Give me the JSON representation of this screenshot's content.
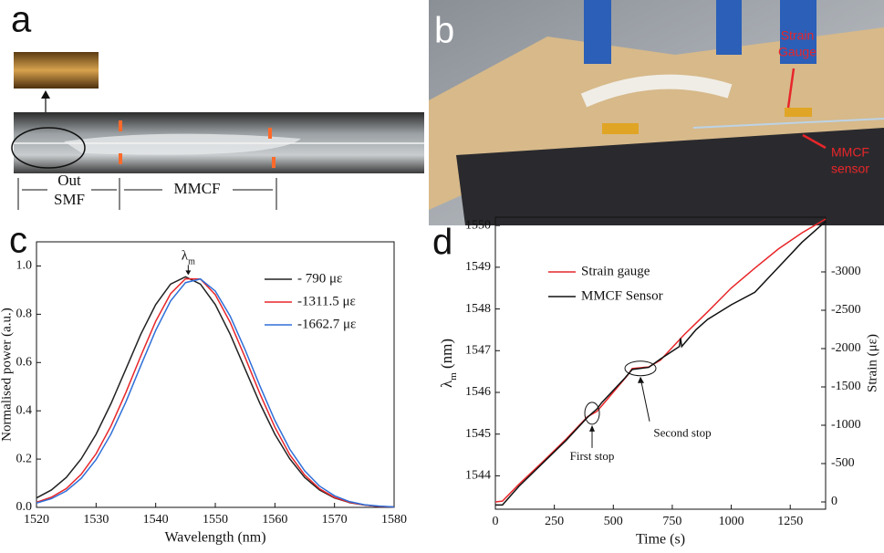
{
  "panel_labels": [
    "a",
    "b",
    "c",
    "d"
  ],
  "photo_a": {
    "labels": [
      "Out",
      "SMF",
      "MMCF"
    ]
  },
  "photo_b": {
    "labels": [
      "Strain",
      "Gauge",
      "MMCF",
      "sensor"
    ]
  },
  "chart_data": [
    {
      "type": "line",
      "ylabel": "Normalised power (a.u.)",
      "xlabel": "Wavelength (nm)",
      "annotation": {
        "symbol": "λ",
        "subscript": "m"
      },
      "xlim": [
        1520,
        1580
      ],
      "xticks": [
        1520,
        1530,
        1540,
        1550,
        1560,
        1570,
        1580
      ],
      "ylim": [
        0,
        1.1
      ],
      "yticks": [
        {
          "value": 0,
          "label": "0.0"
        },
        0.2,
        0.4,
        0.6,
        0.8,
        {
          "value": 1,
          "label": "1.0"
        }
      ],
      "legend": "upper right",
      "x": [
        1520,
        1522.5,
        1525,
        1527.5,
        1530,
        1532.5,
        1535,
        1537.5,
        1540,
        1542.5,
        1545,
        1547.5,
        1550,
        1552.5,
        1555,
        1557.5,
        1560,
        1562.5,
        1565,
        1567.5,
        1570,
        1572.5,
        1575,
        1577.5,
        1580
      ],
      "series": [
        {
          "name": "- 790 με",
          "color": "#222222",
          "values": [
            0.039,
            0.072,
            0.124,
            0.201,
            0.303,
            0.43,
            0.573,
            0.717,
            0.84,
            0.925,
            0.955,
            0.925,
            0.84,
            0.717,
            0.573,
            0.43,
            0.303,
            0.201,
            0.124,
            0.072,
            0.039,
            0.02,
            0.01,
            0.004,
            0.002
          ]
        },
        {
          "name": "-1311.5 με",
          "color": "#e8262a",
          "values": [
            0.021,
            0.042,
            0.078,
            0.137,
            0.222,
            0.337,
            0.476,
            0.627,
            0.771,
            0.885,
            0.947,
            0.946,
            0.881,
            0.766,
            0.621,
            0.47,
            0.332,
            0.218,
            0.134,
            0.077,
            0.041,
            0.021,
            0.01,
            0.004,
            0.002
          ]
        },
        {
          "name": "-1662.7 με",
          "color": "#2e6fd8",
          "values": [
            0.018,
            0.036,
            0.068,
            0.12,
            0.198,
            0.304,
            0.437,
            0.587,
            0.733,
            0.855,
            0.931,
            0.946,
            0.896,
            0.792,
            0.653,
            0.502,
            0.36,
            0.241,
            0.151,
            0.088,
            0.048,
            0.024,
            0.011,
            0.005,
            0.002
          ]
        }
      ]
    },
    {
      "type": "line",
      "xlabel": "Time (s)",
      "ylabel": [
        "λ",
        "m",
        " (nm)"
      ],
      "y2label": "Strain (με)",
      "annotations": [
        "First stop",
        "Second stop"
      ],
      "xlim": [
        0,
        1400
      ],
      "xticks": [
        0,
        250,
        500,
        750,
        1000,
        1250
      ],
      "ylim": [
        1543.2,
        1550.2
      ],
      "yticks": [
        1544,
        1545,
        1546,
        1547,
        1548,
        1549,
        1550
      ],
      "y2lim": [
        95,
        -3714
      ],
      "y2ticks": [
        0,
        -500,
        -1000,
        -1500,
        -2000,
        -2500,
        -3000
      ],
      "legend": "upper left",
      "series": [
        {
          "name": "Strain gauge",
          "color": "#e8262a",
          "axis": "y2",
          "x": [
            0,
            30,
            100,
            200,
            300,
            390,
            430,
            450,
            560,
            580,
            650,
            700,
            800,
            900,
            1000,
            1100,
            1200,
            1300,
            1400
          ],
          "values": [
            0,
            -10,
            -230,
            -520,
            -820,
            -1110,
            -1180,
            -1250,
            -1650,
            -1740,
            -1760,
            -1850,
            -2180,
            -2480,
            -2790,
            -3050,
            -3300,
            -3510,
            -3690
          ]
        },
        {
          "name": "MMCF Sensor",
          "color": "#111111",
          "x": [
            0,
            30,
            100,
            200,
            300,
            390,
            410,
            430,
            450,
            550,
            580,
            650,
            700,
            780,
            785,
            790,
            850,
            900,
            1000,
            1100,
            1200,
            1300,
            1400
          ],
          "values": [
            1543.3,
            1543.3,
            1543.75,
            1544.3,
            1544.85,
            1545.4,
            1545.5,
            1545.6,
            1545.75,
            1546.35,
            1546.55,
            1546.6,
            1546.8,
            1547.1,
            1547.3,
            1547.1,
            1547.5,
            1547.75,
            1548.1,
            1548.4,
            1549.0,
            1549.6,
            1550.1
          ]
        }
      ]
    }
  ]
}
